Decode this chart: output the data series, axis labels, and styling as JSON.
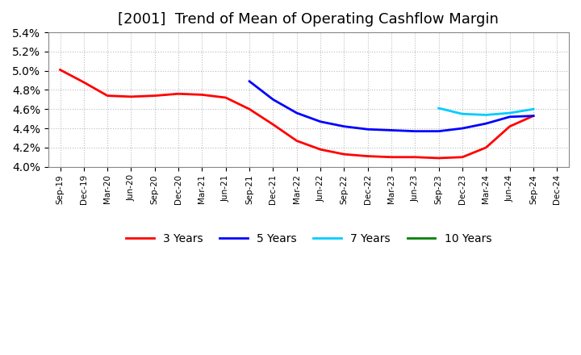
{
  "title": "[2001]  Trend of Mean of Operating Cashflow Margin",
  "x_labels": [
    "Sep-19",
    "Dec-19",
    "Mar-20",
    "Jun-20",
    "Sep-20",
    "Dec-20",
    "Mar-21",
    "Jun-21",
    "Sep-21",
    "Dec-21",
    "Mar-22",
    "Jun-22",
    "Sep-22",
    "Dec-22",
    "Mar-23",
    "Jun-23",
    "Sep-23",
    "Dec-23",
    "Mar-24",
    "Jun-24",
    "Sep-24",
    "Dec-24"
  ],
  "series_3yr": {
    "label": "3 Years",
    "color": "#ff0000",
    "data_indices": [
      0,
      1,
      2,
      3,
      4,
      5,
      6,
      7,
      8,
      9,
      10,
      11,
      12,
      13,
      14,
      15,
      16,
      17,
      18,
      19,
      20
    ],
    "values": [
      5.01,
      4.88,
      4.74,
      4.73,
      4.74,
      4.76,
      4.75,
      4.72,
      4.6,
      4.44,
      4.27,
      4.18,
      4.13,
      4.11,
      4.1,
      4.1,
      4.09,
      4.1,
      4.2,
      4.42,
      4.53
    ]
  },
  "series_5yr": {
    "label": "5 Years",
    "color": "#0000ff",
    "data_indices": [
      8,
      9,
      10,
      11,
      12,
      13,
      14,
      15,
      16,
      17,
      18,
      19,
      20
    ],
    "values": [
      4.89,
      4.7,
      4.56,
      4.47,
      4.42,
      4.39,
      4.38,
      4.37,
      4.37,
      4.4,
      4.45,
      4.52,
      4.53
    ]
  },
  "series_7yr": {
    "label": "7 Years",
    "color": "#00ccff",
    "data_indices": [
      16,
      17,
      18,
      19,
      20
    ],
    "values": [
      4.61,
      4.55,
      4.54,
      4.56,
      4.6
    ]
  },
  "series_10yr": {
    "label": "10 Years",
    "color": "#008000",
    "data_indices": [],
    "values": []
  },
  "ylim": [
    4.0,
    5.4
  ],
  "yticks": [
    4.0,
    4.2,
    4.4,
    4.6,
    4.8,
    5.0,
    5.2,
    5.4
  ],
  "background_color": "#ffffff",
  "plot_bg_color": "#ffffff",
  "grid_color": "#aaaaaa",
  "title_fontsize": 13,
  "legend_items": [
    {
      "label": "3 Years",
      "color": "#ff0000"
    },
    {
      "label": "5 Years",
      "color": "#0000ff"
    },
    {
      "label": "7 Years",
      "color": "#00ccff"
    },
    {
      "label": "10 Years",
      "color": "#008000"
    }
  ]
}
